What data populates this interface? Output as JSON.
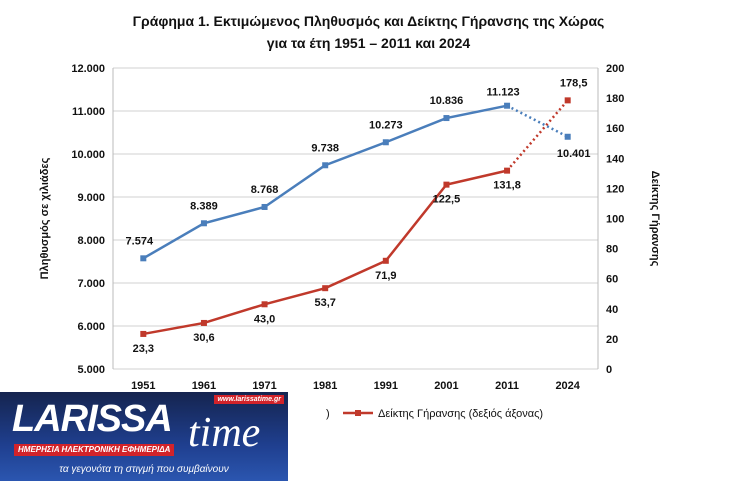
{
  "chart_data": {
    "type": "line",
    "title_line1": "Γράφημα 1. Εκτιμώμενος Πληθυσμός και Δείκτης Γήρανσης της Χώρας",
    "title_line2": "για τα έτη 1951 – 2011 και 2024",
    "categories": [
      "1951",
      "1961",
      "1971",
      "1981",
      "1991",
      "2001",
      "2011",
      "2024"
    ],
    "ylabel": "Πληθυσμός σε χιλιάδες",
    "y2label": "Δείκτης Γήρανσης",
    "ylim": [
      5000,
      12000
    ],
    "y_ticks": [
      "5.000",
      "6.000",
      "7.000",
      "8.000",
      "9.000",
      "10.000",
      "11.000",
      "12.000"
    ],
    "y2lim": [
      0,
      200
    ],
    "y2_ticks": [
      "0",
      "20",
      "40",
      "60",
      "80",
      "100",
      "120",
      "140",
      "160",
      "180",
      "200"
    ],
    "grid": true,
    "legend_position": "bottom",
    "series": [
      {
        "name": ")",
        "axis": "left",
        "color": "#4a7ebb",
        "values": [
          7574,
          8389,
          8768,
          9738,
          10273,
          10836,
          11123,
          10401
        ],
        "labels": [
          "7.574",
          "8.389",
          "8.768",
          "9.738",
          "10.273",
          "10.836",
          "11.123",
          "10.401"
        ]
      },
      {
        "name": "Δείκτης Γήρανσης (δεξιός άξονας)",
        "axis": "right",
        "color": "#c0392b",
        "values": [
          23.3,
          30.6,
          43.0,
          53.7,
          71.9,
          122.5,
          131.8,
          178.5
        ],
        "labels": [
          "23,3",
          "30,6",
          "43,0",
          "53,7",
          "71,9",
          "122,5",
          "131,8",
          "178,5"
        ]
      }
    ]
  },
  "logo": {
    "brand": "LARISSA",
    "brand2": "time",
    "url": "www.larissatime.gr",
    "tagline": "ΗΜΕΡΗΣΙΑ ΗΛΕΚΤΡΟΝΙΚΗ ΕΦΗΜΕΡΙΔΑ",
    "slogan": "τα γεγονότα τη στιγμή που συμβαίνουν"
  }
}
